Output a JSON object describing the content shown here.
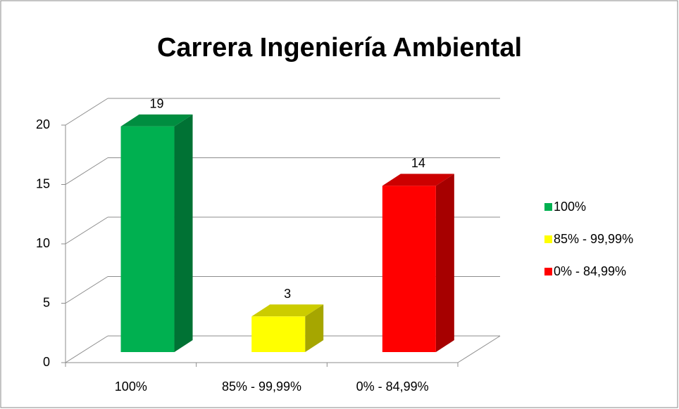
{
  "chart_data": {
    "type": "bar3d",
    "title": "Carrera Ingeniería Ambiental",
    "categories": [
      "100%",
      "85% - 99,99%",
      "0% - 84,99%"
    ],
    "values": [
      19,
      3,
      14
    ],
    "colors": [
      "#00b050",
      "#ffff00",
      "#ff0000"
    ],
    "ylim": [
      0,
      20
    ],
    "yticks": [
      0,
      5,
      10,
      15,
      20
    ],
    "grid": true,
    "legend": "right"
  }
}
